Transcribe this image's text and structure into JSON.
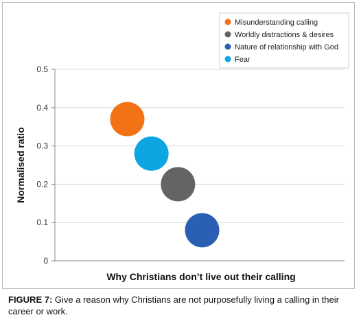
{
  "chart_data": {
    "type": "scatter",
    "title": "",
    "xlabel": "Why Christians don’t live out their calling",
    "ylabel": "Normalised ratio",
    "ylim": [
      0,
      0.5
    ],
    "yticks": [
      "0",
      "0.1",
      "0.2",
      "0.3",
      "0.4",
      "0.5"
    ],
    "xlim": [
      0,
      6
    ],
    "grid": true,
    "legend_position": "top-right",
    "series": [
      {
        "name": "Misunderstanding calling",
        "color": "#f47216",
        "x": 1.5,
        "y": 0.37
      },
      {
        "name": "Worldly distractions & desires",
        "color": "#646464",
        "x": 2.55,
        "y": 0.2
      },
      {
        "name": "Nature of relationship with God",
        "color": "#2b5fb4",
        "x": 3.05,
        "y": 0.08
      },
      {
        "name": "Fear",
        "color": "#0ea5e3",
        "x": 2.0,
        "y": 0.28
      }
    ]
  },
  "caption": {
    "label": "FIGURE 7:",
    "text": " Give a reason why Christians are not purposefully living a calling in their career or work."
  }
}
